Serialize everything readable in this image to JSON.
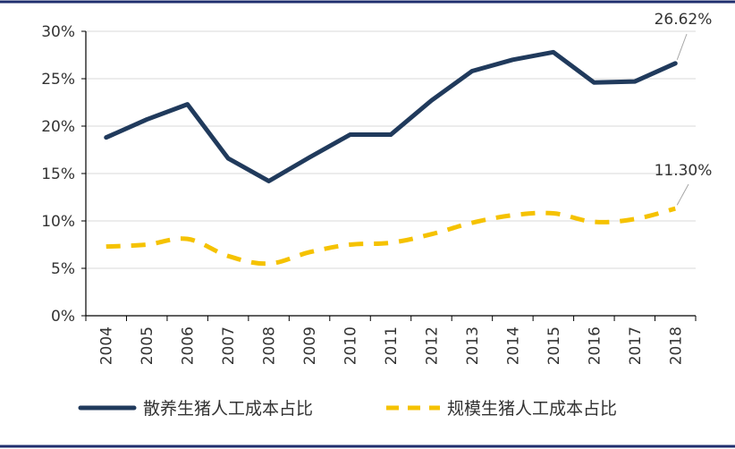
{
  "chart_data": {
    "type": "line",
    "title": "",
    "xlabel": "",
    "ylabel": "",
    "categories": [
      "2004",
      "2005",
      "2006",
      "2007",
      "2008",
      "2009",
      "2010",
      "2011",
      "2012",
      "2013",
      "2014",
      "2015",
      "2016",
      "2017",
      "2018"
    ],
    "y_tick_labels": [
      "0%",
      "5%",
      "10%",
      "15%",
      "20%",
      "25%",
      "30%"
    ],
    "y_ticks": [
      0,
      5,
      10,
      15,
      20,
      25,
      30
    ],
    "ylim": [
      0,
      30
    ],
    "grid": {
      "horizontal": true,
      "vertical": false
    },
    "legend_placement": "bottom",
    "series": [
      {
        "name": "散养生猪人工成本占比",
        "values": [
          18.8,
          20.7,
          22.3,
          16.6,
          14.2,
          16.7,
          19.1,
          19.1,
          22.7,
          25.8,
          27.0,
          27.8,
          24.6,
          24.7,
          26.62
        ],
        "color": "#203a5c",
        "style": "solid",
        "end_label": "26.62%"
      },
      {
        "name": "规模生猪人工成本占比",
        "values": [
          7.3,
          7.5,
          8.1,
          6.3,
          5.5,
          6.7,
          7.5,
          7.7,
          8.6,
          9.8,
          10.6,
          10.8,
          9.9,
          10.2,
          11.3
        ],
        "color": "#f5c200",
        "style": "dashed",
        "end_label": "11.30%"
      }
    ],
    "frame_color": "#1f2e6e"
  }
}
